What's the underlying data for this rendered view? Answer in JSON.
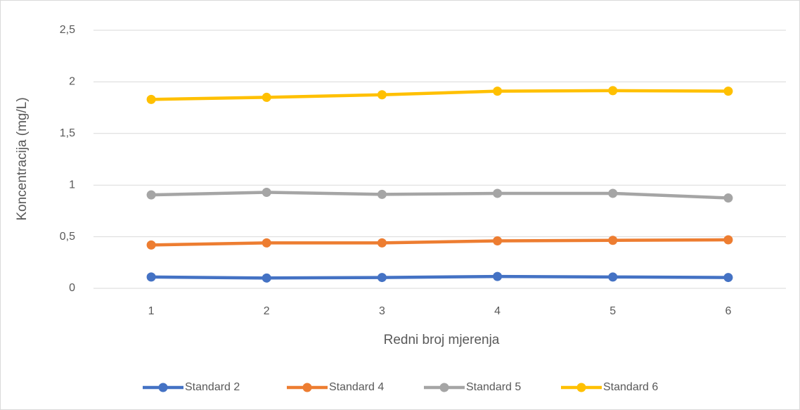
{
  "chart_data": {
    "type": "line",
    "x_label": "Redni broj mjerenja",
    "y_label": "Koncentracija (mg/L)",
    "categories": [
      "1",
      "2",
      "3",
      "4",
      "5",
      "6"
    ],
    "series": [
      {
        "name": "Standard 2",
        "color": "#4472c4",
        "values": [
          0.11,
          0.1,
          0.105,
          0.115,
          0.11,
          0.105
        ]
      },
      {
        "name": "Standard 4",
        "color": "#ed7d31",
        "values": [
          0.42,
          0.44,
          0.44,
          0.46,
          0.465,
          0.47
        ]
      },
      {
        "name": "Standard 5",
        "color": "#a5a5a5",
        "values": [
          0.905,
          0.93,
          0.91,
          0.92,
          0.92,
          0.875
        ]
      },
      {
        "name": "Standard 6",
        "color": "#ffc000",
        "values": [
          1.83,
          1.85,
          1.875,
          1.91,
          1.915,
          1.91
        ]
      }
    ],
    "ylim": [
      0,
      2.5
    ],
    "yticks": [
      0,
      {
        "value": 0.5,
        "label": "0,5"
      },
      1,
      {
        "value": 1.5,
        "label": "1,5"
      },
      2,
      {
        "value": 2.5,
        "label": "2,5"
      }
    ],
    "grid": true,
    "legend": "bottom"
  }
}
